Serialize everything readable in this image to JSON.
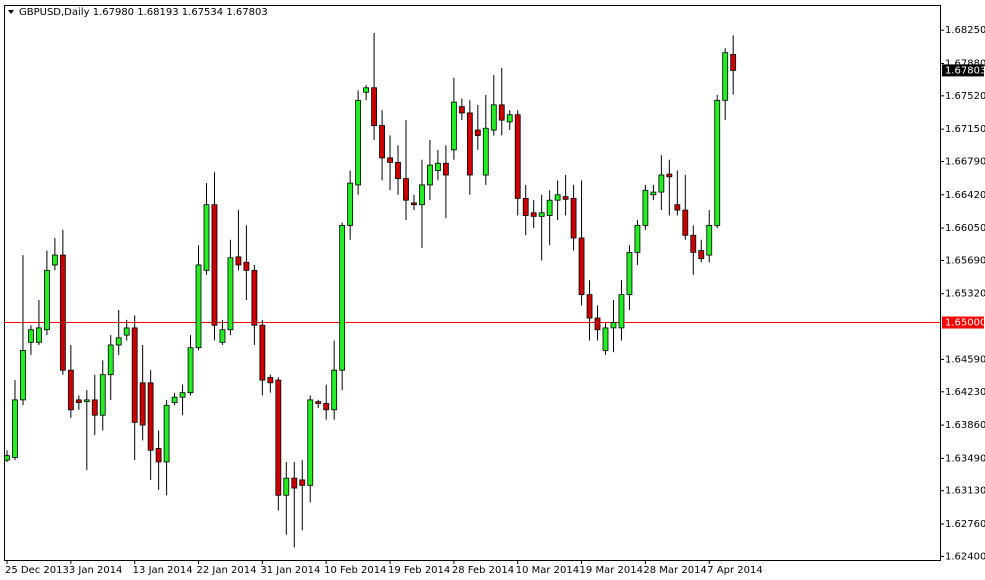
{
  "chart_data": {
    "type": "candlestick",
    "title": "GBPUSD,Daily",
    "last_labels": [
      "1.67980",
      "1.68193",
      "1.67534",
      "1.67803"
    ],
    "up_color": "#22ee22",
    "down_color": "#cc0000",
    "categories": [
      "25 Dec 2013",
      null,
      null,
      null,
      null,
      null,
      null,
      null,
      "3 Jan 2014",
      null,
      null,
      null,
      null,
      null,
      null,
      null,
      "13 Jan 2014",
      null,
      null,
      null,
      null,
      null,
      null,
      null,
      "22 Jan 2014",
      null,
      null,
      null,
      null,
      null,
      null,
      null,
      "31 Jan 2014",
      null,
      null,
      null,
      null,
      null,
      null,
      null,
      "10 Feb 2014",
      null,
      null,
      null,
      null,
      null,
      null,
      null,
      "19 Feb 2014",
      null,
      null,
      null,
      null,
      null,
      null,
      null,
      "28 Feb 2014",
      null,
      null,
      null,
      null,
      null,
      null,
      null,
      "10 Mar 2014",
      null,
      null,
      null,
      null,
      null,
      null,
      null,
      "19 Mar 2014",
      null,
      null,
      null,
      null,
      null,
      null,
      null,
      "28 Mar 2014",
      null,
      null,
      null,
      null,
      null,
      null,
      null,
      "7 Apr 2014",
      null,
      null,
      null
    ],
    "open": [
      1.6347,
      1.635,
      1.6414,
      1.6478,
      1.6478,
      1.6492,
      1.6564,
      1.6575,
      1.6447,
      1.6414,
      1.6412,
      1.6414,
      1.6397,
      1.6442,
      1.6475,
      1.6486,
      1.6494,
      1.6433,
      1.6433,
      1.636,
      1.6345,
      1.6411,
      1.6417,
      1.6422,
      1.6472,
      1.6558,
      1.6631,
      1.6478,
      1.6492,
      1.6573,
      1.6567,
      1.6558,
      1.6497,
      1.6439,
      1.6436,
      1.6308,
      1.6327,
      1.6325,
      1.6319,
      1.6412,
      1.641,
      1.6403,
      1.6447,
      1.6608,
      1.6653,
      1.6756,
      1.6761,
      1.6719,
      1.6683,
      1.6678,
      1.666,
      1.6633,
      1.6631,
      1.6653,
      1.6669,
      1.6677,
      1.6692,
      1.674,
      1.6733,
      1.6714,
      1.6664,
      1.6714,
      1.6742,
      1.6723,
      1.6731,
      1.6638,
      1.6622,
      1.6618,
      1.6619,
      1.6636,
      1.664,
      1.6638,
      1.6594,
      1.6531,
      1.6505,
      1.6469,
      1.6494,
      1.6494,
      1.6531,
      1.6578,
      1.6608,
      1.6642,
      1.6645,
      1.6665,
      1.6631,
      1.6625,
      1.6597,
      1.658,
      1.6575,
      1.6608,
      1.6747,
      1.6798
    ],
    "high": [
      1.6358,
      1.6436,
      1.6575,
      1.6497,
      1.6525,
      1.658,
      1.6594,
      1.6603,
      1.6475,
      1.6419,
      1.6425,
      1.6442,
      1.6458,
      1.6486,
      1.6514,
      1.6503,
      1.6508,
      1.6475,
      1.6447,
      1.638,
      1.6414,
      1.6422,
      1.6431,
      1.6486,
      1.6586,
      1.6655,
      1.6667,
      1.6503,
      1.6592,
      1.6625,
      1.6608,
      1.6564,
      1.6503,
      1.6442,
      1.6439,
      1.6345,
      1.6345,
      1.6347,
      1.6419,
      1.6414,
      1.6431,
      1.648,
      1.6611,
      1.6669,
      1.6758,
      1.6764,
      1.6822,
      1.6736,
      1.6708,
      1.6697,
      1.6725,
      1.6642,
      1.6681,
      1.6703,
      1.6692,
      1.6697,
      1.6772,
      1.6749,
      1.6747,
      1.6742,
      1.6753,
      1.6775,
      1.6783,
      1.6736,
      1.6736,
      1.6653,
      1.6636,
      1.6642,
      1.6647,
      1.6658,
      1.6664,
      1.6653,
      1.6658,
      1.6547,
      1.6519,
      1.65,
      1.6525,
      1.6547,
      1.6586,
      1.6614,
      1.6653,
      1.6653,
      1.6686,
      1.6681,
      1.6669,
      1.6664,
      1.6608,
      1.6592,
      1.6625,
      1.6753,
      1.6805,
      1.68193
    ],
    "low": [
      1.6345,
      1.6347,
      1.6408,
      1.6464,
      1.6475,
      1.6486,
      1.6558,
      1.6442,
      1.6394,
      1.6403,
      1.6336,
      1.6375,
      1.638,
      1.6414,
      1.6464,
      1.648,
      1.6347,
      1.6369,
      1.6325,
      1.6314,
      1.6308,
      1.6408,
      1.6397,
      1.6419,
      1.6469,
      1.6553,
      1.648,
      1.6475,
      1.6486,
      1.6558,
      1.6525,
      1.6475,
      1.6419,
      1.6422,
      1.6291,
      1.6264,
      1.625,
      1.6269,
      1.63,
      1.6405,
      1.6392,
      1.6392,
      1.6425,
      1.6592,
      1.6642,
      1.6747,
      1.6703,
      1.6658,
      1.6647,
      1.6642,
      1.6614,
      1.6625,
      1.6583,
      1.6636,
      1.6658,
      1.6616,
      1.6681,
      1.6725,
      1.6642,
      1.6692,
      1.6653,
      1.6708,
      1.6708,
      1.6714,
      1.6619,
      1.6597,
      1.6605,
      1.6569,
      1.6586,
      1.6614,
      1.6619,
      1.658,
      1.6519,
      1.648,
      1.648,
      1.6464,
      1.6467,
      1.648,
      1.6514,
      1.6564,
      1.6603,
      1.6636,
      1.6625,
      1.6619,
      1.6619,
      1.6592,
      1.6553,
      1.6567,
      1.6567,
      1.6605,
      1.6725,
      1.67534
    ],
    "close": [
      1.6352,
      1.6414,
      1.6469,
      1.6492,
      1.6494,
      1.6558,
      1.6575,
      1.6447,
      1.6403,
      1.6411,
      1.6414,
      1.6397,
      1.6442,
      1.6475,
      1.6483,
      1.6494,
      1.6389,
      1.6386,
      1.6358,
      1.6345,
      1.6408,
      1.6417,
      1.6422,
      1.6472,
      1.6564,
      1.6631,
      1.6497,
      1.6492,
      1.6572,
      1.6564,
      1.6558,
      1.6497,
      1.6436,
      1.6433,
      1.6308,
      1.6327,
      1.6316,
      1.6319,
      1.6414,
      1.641,
      1.6403,
      1.6447,
      1.6608,
      1.6655,
      1.6747,
      1.6761,
      1.6719,
      1.6683,
      1.6678,
      1.666,
      1.6636,
      1.6631,
      1.6653,
      1.6675,
      1.6677,
      1.6664,
      1.6745,
      1.6733,
      1.6664,
      1.6708,
      1.6716,
      1.6742,
      1.6725,
      1.6731,
      1.6638,
      1.6619,
      1.6618,
      1.6622,
      1.6636,
      1.6642,
      1.6637,
      1.6594,
      1.6531,
      1.6505,
      1.6492,
      1.6494,
      1.65,
      1.6531,
      1.6578,
      1.6608,
      1.6647,
      1.6645,
      1.6664,
      1.6662,
      1.6625,
      1.6597,
      1.6578,
      1.6571,
      1.6608,
      1.6747,
      1.68,
      1.67803
    ],
    "ylim": [
      1.6236,
      1.6853
    ],
    "yticks": [
      {
        "value": 1.6825,
        "label": "1.68250"
      },
      {
        "value": 1.6788,
        "label": "1.67880"
      },
      {
        "value": 1.6752,
        "label": "1.67520"
      },
      {
        "value": 1.6715,
        "label": "1.67150"
      },
      {
        "value": 1.6679,
        "label": "1.66790"
      },
      {
        "value": 1.6642,
        "label": "1.66420"
      },
      {
        "value": 1.6605,
        "label": "1.66050"
      },
      {
        "value": 1.6569,
        "label": "1.65690"
      },
      {
        "value": 1.6532,
        "label": "1.65320"
      },
      {
        "value": 1.6459,
        "label": "1.64590"
      },
      {
        "value": 1.6423,
        "label": "1.64230"
      },
      {
        "value": 1.6386,
        "label": "1.63860"
      },
      {
        "value": 1.6349,
        "label": "1.63490"
      },
      {
        "value": 1.6313,
        "label": "1.63130"
      },
      {
        "value": 1.6276,
        "label": "1.62760"
      },
      {
        "value": 1.624,
        "label": "1.62400"
      }
    ],
    "hline": {
      "value": 1.65,
      "label": "1.65000",
      "color": "#ff0000"
    },
    "grid": false
  }
}
